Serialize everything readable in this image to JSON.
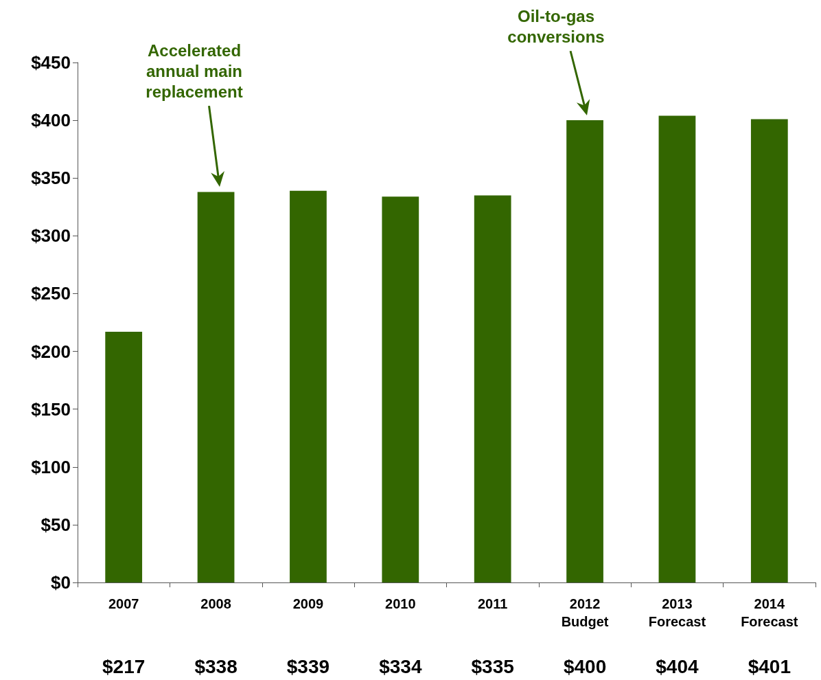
{
  "chart_data": {
    "type": "bar",
    "categories": [
      "2007",
      "2008",
      "2009",
      "2010",
      "2011",
      "2012\nBudget",
      "2013\nForecast",
      "2014\nForecast"
    ],
    "values": [
      217,
      338,
      339,
      334,
      335,
      400,
      404,
      401
    ],
    "value_labels": [
      "$217",
      "$338",
      "$339",
      "$334",
      "$335",
      "$400",
      "$404",
      "$401"
    ],
    "color": "#336600",
    "ylim": [
      0,
      450
    ],
    "yticks": [
      {
        "value": 0,
        "label": "$0"
      },
      {
        "value": 50,
        "label": "$50"
      },
      {
        "value": 100,
        "label": "$100"
      },
      {
        "value": 150,
        "label": "$150"
      },
      {
        "value": 200,
        "label": "$200"
      },
      {
        "value": 250,
        "label": "$250"
      },
      {
        "value": 300,
        "label": "$300"
      },
      {
        "value": 350,
        "label": "$350"
      },
      {
        "value": 400,
        "label": "$400"
      },
      {
        "value": 450,
        "label": "$450"
      }
    ],
    "grid": false,
    "annotations": [
      "Accelerated\nannual main\nreplacement",
      "Oil-to-gas\nconversions"
    ]
  }
}
